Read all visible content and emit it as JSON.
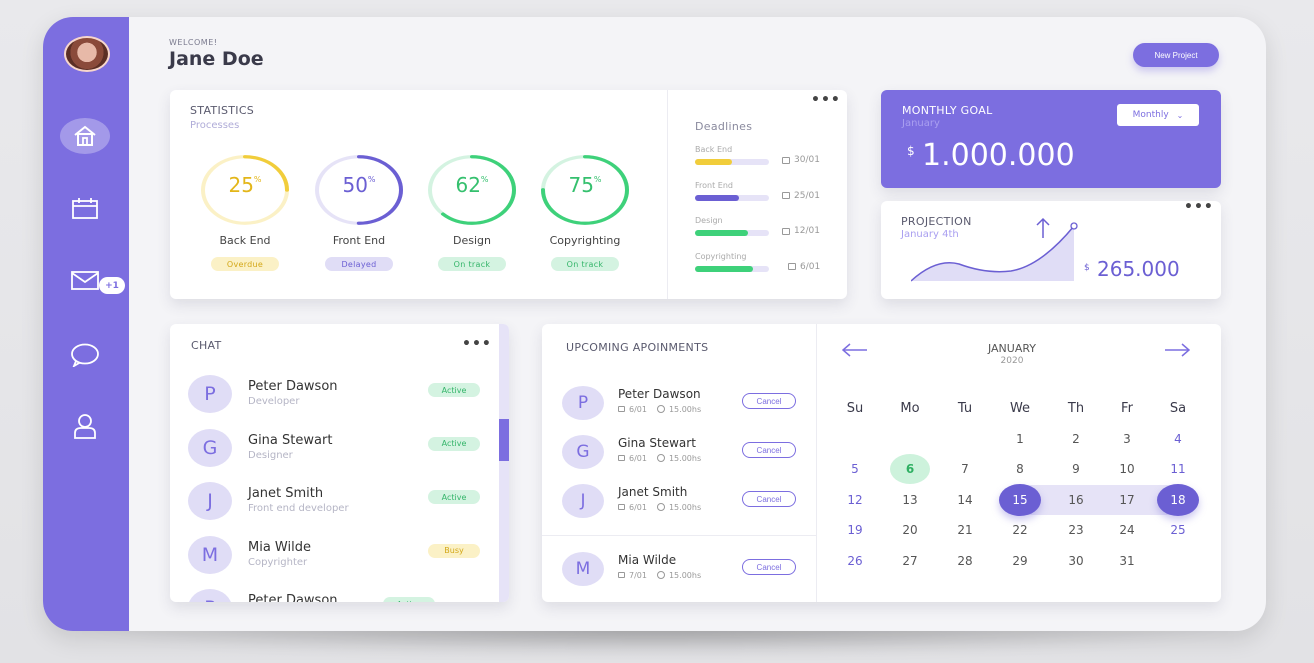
{
  "colors": {
    "accent": "#7c6ee0",
    "yellow": "#f1cd3b",
    "green": "#3ed17a",
    "purple": "#6b5fd3"
  },
  "user": {
    "welcome": "WELCOME!",
    "name": "Jane Doe"
  },
  "header": {
    "new_project_label": "New Project"
  },
  "sidebar": {
    "items": [
      {
        "icon": "home-icon",
        "active": true
      },
      {
        "icon": "calendar-icon"
      },
      {
        "icon": "mail-icon",
        "badge": "+1"
      },
      {
        "icon": "chat-icon"
      },
      {
        "icon": "user-icon"
      }
    ]
  },
  "statistics": {
    "title": "STATISTICS",
    "subtitle": "Processes",
    "gauges": [
      {
        "value": "25",
        "unit": "%",
        "percent": 25,
        "name": "Back End",
        "status": "Overdue",
        "color": "#f1cd3b",
        "track": "#fbf1c6",
        "text": "#e3b619",
        "pill_bg": "#fbf1c6",
        "pill_text": "#d3a819"
      },
      {
        "value": "50",
        "unit": "%",
        "percent": 50,
        "name": "Front End",
        "status": "Delayed",
        "color": "#6b5fd3",
        "track": "#e6e3f7",
        "text": "#6b5fd3",
        "pill_bg": "#e0ddf6",
        "pill_text": "#6b5fd3"
      },
      {
        "value": "62",
        "unit": "%",
        "percent": 62,
        "name": "Design",
        "status": "On track",
        "color": "#3ed17a",
        "track": "#d4f3e1",
        "text": "#35c06e",
        "pill_bg": "#d4f3e1",
        "pill_text": "#35b56a"
      },
      {
        "value": "75",
        "unit": "%",
        "percent": 75,
        "name": "Copyrighting",
        "status": "On track",
        "color": "#3ed17a",
        "track": "#d4f3e1",
        "text": "#35c06e",
        "pill_bg": "#d4f3e1",
        "pill_text": "#35b56a"
      }
    ]
  },
  "deadlines": {
    "title": "Deadlines",
    "items": [
      {
        "label": "Back End",
        "progress": 0.5,
        "color": "#f1cd3b",
        "date": "30/01"
      },
      {
        "label": "Front End",
        "progress": 0.6,
        "color": "#6b5fd3",
        "date": "25/01"
      },
      {
        "label": "Design",
        "progress": 0.72,
        "color": "#3ed17a",
        "date": "12/01"
      },
      {
        "label": "Copyrighting",
        "progress": 0.78,
        "color": "#3ed17a",
        "date": "6/01"
      }
    ]
  },
  "monthly_goal": {
    "title": "MONTHLY GOAL",
    "subtitle": "January",
    "currency": "$",
    "amount": "1.000.000",
    "select": "Monthly"
  },
  "projection": {
    "title": "PROJECTION",
    "subtitle": "January 4th",
    "currency": "$",
    "amount": "265.000"
  },
  "chat": {
    "title": "CHAT",
    "items": [
      {
        "letter": "P",
        "name": "Peter Dawson",
        "role": "Developer",
        "status": "Active"
      },
      {
        "letter": "G",
        "name": "Gina Stewart",
        "role": "Designer",
        "status": "Active"
      },
      {
        "letter": "J",
        "name": "Janet Smith",
        "role": "Front end developer",
        "status": "Active"
      },
      {
        "letter": "M",
        "name": "Mia Wilde",
        "role": "Copyrighter",
        "status": "Busy"
      },
      {
        "letter": "P",
        "name": "Peter Dawson",
        "role": "",
        "status": "Active"
      }
    ]
  },
  "appointments": {
    "title": "UPCOMING APOINMENTS",
    "items": [
      {
        "letter": "P",
        "name": "Peter Dawson",
        "date": "6/01",
        "time": "15.00hs",
        "action": "Cancel"
      },
      {
        "letter": "G",
        "name": "Gina Stewart",
        "date": "6/01",
        "time": "15.00hs",
        "action": "Cancel"
      },
      {
        "letter": "J",
        "name": "Janet Smith",
        "date": "6/01",
        "time": "15.00hs",
        "action": "Cancel"
      },
      {
        "letter": "M",
        "name": "Mia Wilde",
        "date": "7/01",
        "time": "15.00hs",
        "action": "Cancel"
      }
    ]
  },
  "calendar": {
    "month": "JANUARY",
    "year": "2020",
    "weekdays": [
      "Su",
      "Mo",
      "Tu",
      "We",
      "Th",
      "Fr",
      "Sa"
    ],
    "weeks": [
      [
        "",
        "",
        "",
        "1",
        "2",
        "3",
        "4"
      ],
      [
        "5",
        "6",
        "7",
        "8",
        "9",
        "10",
        "11"
      ],
      [
        "12",
        "13",
        "14",
        "15",
        "16",
        "17",
        "18"
      ],
      [
        "19",
        "20",
        "21",
        "22",
        "23",
        "24",
        "25"
      ],
      [
        "26",
        "27",
        "28",
        "29",
        "30",
        "31",
        ""
      ]
    ],
    "today": "6",
    "range_start": "15",
    "range_end": "18"
  }
}
